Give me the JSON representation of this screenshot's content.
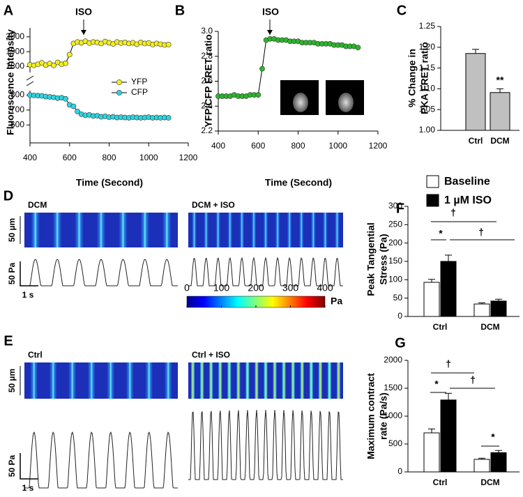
{
  "chart_data": [
    {
      "type": "line",
      "panel": "A",
      "xlabel": "Time (Second)",
      "ylabel": "Fluorescence Intensity",
      "annotations": [
        "ISO"
      ],
      "legend": "inside",
      "xlim": [
        400,
        1200
      ],
      "xticks": [
        400,
        600,
        800,
        1000,
        1200
      ],
      "y_segments": [
        [
          480,
          830
        ],
        [
          1760,
          2060
        ]
      ],
      "yticks": [
        600,
        700,
        800,
        1800,
        1900,
        2000
      ],
      "x": [
        400,
        420,
        440,
        460,
        480,
        500,
        520,
        540,
        560,
        580,
        600,
        620,
        640,
        660,
        680,
        700,
        720,
        740,
        760,
        780,
        800,
        820,
        840,
        860,
        880,
        900,
        920,
        940,
        960,
        980,
        1000,
        1020,
        1040,
        1060,
        1080,
        1100
      ],
      "series": [
        {
          "name": "YFP",
          "color": "#f2ee22",
          "values": [
            1812,
            1808,
            1815,
            1825,
            1810,
            1820,
            1808,
            1828,
            1815,
            1822,
            1880,
            1955,
            1965,
            1960,
            1970,
            1958,
            1965,
            1962,
            1955,
            1968,
            1960,
            1952,
            1965,
            1958,
            1962,
            1955,
            1960,
            1950,
            1962,
            1955,
            1958,
            1948,
            1955,
            1950,
            1945,
            1948
          ]
        },
        {
          "name": "CFP",
          "color": "#2fd3df",
          "values": [
            800,
            798,
            796,
            795,
            790,
            788,
            785,
            780,
            782,
            775,
            735,
            725,
            690,
            672,
            665,
            668,
            660,
            662,
            655,
            658,
            652,
            655,
            650,
            652,
            650,
            648,
            652,
            650,
            648,
            650,
            652,
            648,
            650,
            648,
            650,
            648
          ]
        }
      ]
    },
    {
      "type": "line",
      "panel": "B",
      "xlabel": "Time (Second)",
      "ylabel": "YFP/CFP FRET ratio",
      "annotations": [
        "ISO"
      ],
      "insets": [
        "YFP",
        "CFP"
      ],
      "xlim": [
        400,
        1200
      ],
      "xticks": [
        400,
        600,
        800,
        1000,
        1200
      ],
      "ylim": [
        2.2,
        3.0
      ],
      "yticks": [
        2.2,
        2.4,
        2.6,
        2.8,
        {
          "value": 3,
          "label": "3.0"
        }
      ],
      "x": [
        400,
        420,
        440,
        460,
        480,
        500,
        520,
        540,
        560,
        580,
        600,
        620,
        640,
        660,
        680,
        700,
        720,
        740,
        760,
        780,
        800,
        820,
        840,
        860,
        880,
        900,
        920,
        940,
        960,
        980,
        1000,
        1020,
        1040,
        1060,
        1080,
        1100
      ],
      "series": [
        {
          "color": "#2db52d",
          "values": [
            2.48,
            2.48,
            2.48,
            2.48,
            2.49,
            2.48,
            2.48,
            2.48,
            2.49,
            2.49,
            2.49,
            2.7,
            2.93,
            2.94,
            2.94,
            2.93,
            2.93,
            2.93,
            2.92,
            2.92,
            2.92,
            2.91,
            2.91,
            2.91,
            2.91,
            2.9,
            2.9,
            2.9,
            2.9,
            2.89,
            2.89,
            2.89,
            2.88,
            2.88,
            2.88,
            2.87
          ]
        }
      ]
    },
    {
      "type": "bar",
      "panel": "C",
      "ylabel": [
        "% Change in",
        "PKA FRET ratio"
      ],
      "annotations": [
        "**"
      ],
      "categories": [
        "Ctrl",
        "DCM"
      ],
      "values": [
        1.185,
        1.091
      ],
      "errors": [
        0.01,
        0.009
      ],
      "color": "#c0c0c0",
      "ylim": [
        1,
        1.25
      ],
      "yticks": [
        {
          "value": 1,
          "label": "1.00"
        },
        {
          "value": 1.05,
          "label": "1.05"
        },
        {
          "value": 1.1,
          "label": "1.10"
        },
        {
          "value": 1.15,
          "label": "1.15"
        },
        {
          "value": 1.2,
          "label": "1.20"
        },
        {
          "value": 1.25,
          "label": "1.25"
        }
      ]
    },
    {
      "type": "grouped_bar",
      "panel": "F",
      "ylabel": [
        "Peak Tangential",
        "Stress (Pa)"
      ],
      "annotations": [
        "†",
        "*",
        "†"
      ],
      "legend": "above",
      "categories": [
        "Ctrl",
        "DCM"
      ],
      "series": [
        {
          "name": "Baseline",
          "color": "#ffffff",
          "values": [
            93,
            34
          ],
          "errors": [
            8,
            3
          ]
        },
        {
          "name": "1 µM ISO",
          "color": "#000000",
          "values": [
            150,
            42
          ],
          "errors": [
            17,
            5
          ]
        }
      ],
      "ylim": [
        0,
        300
      ],
      "yticks": [
        0,
        50,
        100,
        150,
        200,
        250,
        300
      ]
    },
    {
      "type": "grouped_bar",
      "panel": "G",
      "ylabel": [
        "Maximum contract",
        "rate (Pa/s)"
      ],
      "annotations": [
        "†",
        "*",
        "†",
        "*"
      ],
      "categories": [
        "Ctrl",
        "DCM"
      ],
      "series": [
        {
          "color": "#ffffff",
          "values": [
            700,
            225
          ],
          "errors": [
            70,
            20
          ]
        },
        {
          "color": "#000000",
          "values": [
            1290,
            345
          ],
          "errors": [
            120,
            40
          ]
        }
      ],
      "ylim": [
        0,
        2000
      ],
      "yticks": [
        0,
        500,
        1000,
        1500,
        2000
      ]
    }
  ],
  "figure": {
    "panels": [
      {
        "label": "D",
        "images": [
          "DCM",
          "DCM + ISO"
        ],
        "scale_bars": [
          "50 µm",
          "50 Pa",
          "1 s"
        ]
      },
      {
        "label": "E",
        "images": [
          "Ctrl",
          "Ctrl + ISO"
        ],
        "scale_bars": [
          "50 µm",
          "50 Pa",
          "1 s"
        ]
      }
    ],
    "colorbar": {
      "lim": [
        0,
        400
      ],
      "ticks": [
        0,
        100,
        200,
        300,
        400
      ],
      "unit": "Pa"
    }
  }
}
